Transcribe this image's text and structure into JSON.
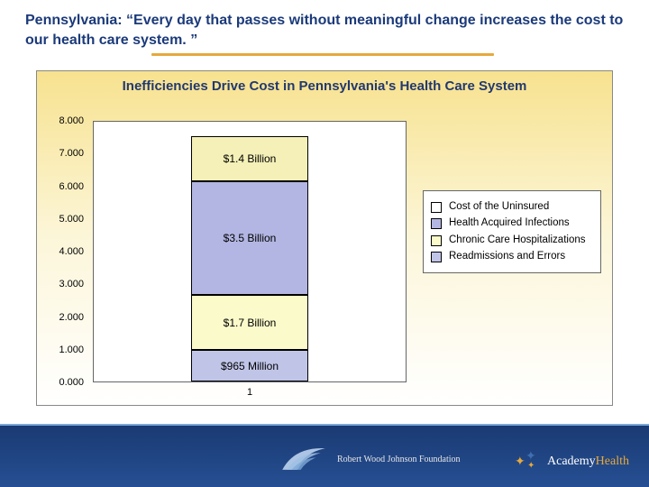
{
  "title": "Pennsylvania: “Every day that passes without meaningful change increases the cost to our health care system. ”",
  "chart": {
    "type": "stacked-bar",
    "title": "Inefficiencies Drive Cost in Pennsylvania's Health Care System",
    "title_fontsize": 15,
    "title_color": "#22386f",
    "panel_gradient_top": "#f7e28f",
    "panel_gradient_mid": "#fcf6d9",
    "panel_gradient_bottom": "#ffffff",
    "plot_background": "#ffffff",
    "border_color": "#666666",
    "ylim": [
      0,
      8
    ],
    "ytick_step": 1,
    "yticks": [
      "0.000",
      "1.000",
      "2.000",
      "3.000",
      "4.000",
      "5.000",
      "6.000",
      "7.000",
      "8.000"
    ],
    "xtick": "1",
    "tick_fontsize": 11,
    "tick_color": "#000000",
    "bar_width_ratio": 0.37,
    "segments": [
      {
        "key": "readmissions_errors",
        "label": "$965 Million",
        "value": 0.965,
        "color": "#c0c5e8"
      },
      {
        "key": "chronic_care",
        "label": "$1.7 Billion",
        "value": 1.7,
        "color": "#fafacb"
      },
      {
        "key": "health_acquired_infections",
        "label": "$3.5 Billion",
        "value": 3.5,
        "color": "#b3b6e2"
      },
      {
        "key": "cost_uninsured",
        "label": "$1.4 Billion",
        "value": 1.4,
        "color": "#f4f0b7"
      }
    ],
    "legend": {
      "position": "right",
      "items": [
        {
          "swatch": "#ffffff",
          "label": "Cost of the Uninsured",
          "key": "cost_uninsured_legend"
        },
        {
          "swatch": "#b3b6e2",
          "label": "Health Acquired Infections",
          "key": "health_acquired_infections"
        },
        {
          "swatch": "#fafacb",
          "label": "Chronic Care Hospitalizations",
          "key": "chronic_care"
        },
        {
          "swatch": "#c0c5e8",
          "label": "Readmissions and Errors",
          "key": "readmissions_errors"
        }
      ],
      "label_fontsize": 11.5,
      "border_color": "#666666",
      "background": "#ffffff"
    }
  },
  "footer": {
    "bar_gradient_top": "#1a3a72",
    "bar_gradient_bottom": "#264f93",
    "separator_color": "#7aa7d9",
    "rwjf_text": "Robert Wood Johnson Foundation",
    "rwjf_color": "#e6e6e6",
    "wing_color": "#bcd3ee",
    "academy_prefix": "Academy",
    "academy_suffix": "Health",
    "academy_prefix_color": "#ffffff",
    "academy_suffix_color": "#e6a93c",
    "star_color_a": "#e6a93c",
    "star_color_b": "#3f6fb0"
  },
  "colors": {
    "title_color": "#1b3a7a",
    "underline_color": "#e6a93c"
  }
}
